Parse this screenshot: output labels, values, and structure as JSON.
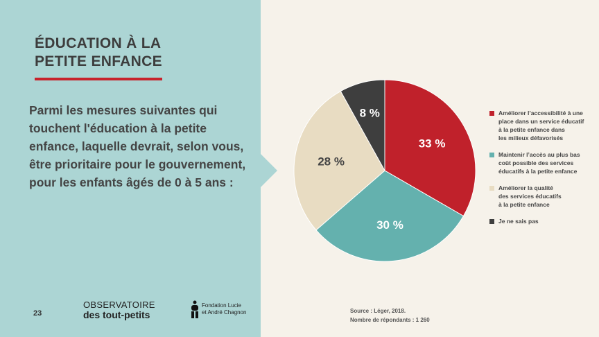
{
  "title_line1": "ÉDUCATION À LA",
  "title_line2": "PETITE ENFANCE",
  "question": "Parmi les mesures suivantes qui touchent l'éducation à la petite enfance, laquelle devrait, selon vous, être prioritaire pour le gouvernement, pour les enfants âgés de 0 à 5 ans :",
  "page_number": "23",
  "logo_observatoire_line1": "OBSERVATOIRE",
  "logo_observatoire_line2": "des tout-petits",
  "logo_fondation_line1": "Fondation Lucie",
  "logo_fondation_line2": "et André Chagnon",
  "source": "Source : Léger, 2018.",
  "respondents": "Nombre de répondants : 1 260",
  "chart_data": {
    "type": "pie",
    "start": "top, clockwise",
    "slices": [
      {
        "label": "Améliorer l’accessibilité à une\nplace dans un service éducatif\nà la petite enfance dans\nles milieux défavorisés",
        "value": 33,
        "display": "33 %",
        "color": "#c0212b"
      },
      {
        "label": "Maintenir l’accès au plus bas\ncoût possible des services\néducatifs à la petite enfance",
        "value": 30,
        "display": "30 %",
        "color": "#64b1ae"
      },
      {
        "label": "Améliorer la qualité\ndes services éducatifs\n à la petite enfance",
        "value": 28,
        "display": "28 %",
        "color": "#e8dcc2"
      },
      {
        "label": "Je ne sais pas",
        "value": 8,
        "display": "8 %",
        "color": "#3e3e3e"
      }
    ]
  }
}
